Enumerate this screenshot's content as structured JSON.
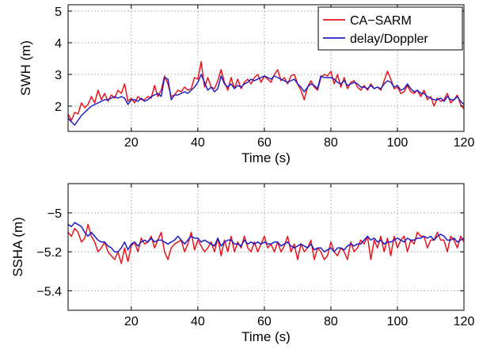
{
  "chart_data": [
    {
      "type": "line",
      "xlabel": "Time (s)",
      "ylabel": "SWH (m)",
      "xlim": [
        1,
        120
      ],
      "ylim": [
        1.2,
        5.2
      ],
      "xticks": [
        20,
        40,
        60,
        80,
        100,
        120
      ],
      "yticks": [
        2,
        3,
        4,
        5
      ],
      "grid": true,
      "legend": "top-right",
      "x": [
        1,
        2,
        3,
        4,
        5,
        6,
        7,
        8,
        9,
        10,
        11,
        12,
        13,
        14,
        15,
        16,
        17,
        18,
        19,
        20,
        21,
        22,
        23,
        24,
        25,
        26,
        27,
        28,
        29,
        30,
        31,
        32,
        33,
        34,
        35,
        36,
        37,
        38,
        39,
        40,
        41,
        42,
        43,
        44,
        45,
        46,
        47,
        48,
        49,
        50,
        51,
        52,
        53,
        54,
        55,
        56,
        57,
        58,
        59,
        60,
        61,
        62,
        63,
        64,
        65,
        66,
        67,
        68,
        69,
        70,
        71,
        72,
        73,
        74,
        75,
        76,
        77,
        78,
        79,
        80,
        81,
        82,
        83,
        84,
        85,
        86,
        87,
        88,
        89,
        90,
        91,
        92,
        93,
        94,
        95,
        96,
        97,
        98,
        99,
        100,
        101,
        102,
        103,
        104,
        105,
        106,
        107,
        108,
        109,
        110,
        111,
        112,
        113,
        114,
        115,
        116,
        117,
        118,
        119,
        120
      ],
      "series": [
        {
          "name": "CA−SARM",
          "color": "#e8141b",
          "values": [
            1.75,
            1.55,
            1.8,
            1.75,
            2.1,
            1.95,
            2.05,
            2.3,
            2.1,
            2.5,
            2.2,
            2.4,
            2.15,
            2.35,
            2.25,
            2.5,
            2.4,
            2.7,
            2.15,
            2.25,
            2.1,
            2.3,
            2.2,
            2.2,
            2.3,
            2.25,
            2.65,
            2.3,
            2.5,
            2.95,
            2.7,
            2.3,
            2.35,
            2.5,
            2.45,
            2.6,
            2.5,
            2.55,
            2.9,
            2.85,
            3.4,
            2.6,
            2.9,
            2.6,
            2.55,
            2.8,
            3.15,
            2.75,
            2.5,
            2.9,
            2.55,
            2.85,
            2.55,
            2.75,
            2.85,
            2.7,
            2.9,
            3.0,
            2.75,
            2.95,
            2.85,
            2.75,
            3.0,
            3.15,
            2.8,
            2.9,
            2.7,
            2.95,
            3.0,
            2.7,
            2.5,
            2.2,
            2.6,
            2.8,
            2.6,
            2.5,
            2.9,
            3.0,
            2.95,
            3.1,
            2.7,
            3.0,
            2.6,
            2.9,
            2.55,
            2.75,
            2.8,
            2.6,
            2.5,
            2.65,
            2.5,
            2.7,
            2.55,
            2.6,
            2.5,
            2.8,
            3.1,
            2.85,
            2.55,
            2.6,
            2.4,
            2.45,
            2.65,
            2.45,
            2.4,
            2.5,
            2.3,
            2.5,
            2.2,
            2.3,
            2.0,
            2.25,
            2.15,
            2.2,
            2.4,
            2.1,
            2.2,
            2.35,
            2.05,
            1.9
          ]
        },
        {
          "name": "delay/Doppler",
          "color": "#1b1bc8",
          "values": [
            1.62,
            1.5,
            1.4,
            1.55,
            1.7,
            1.8,
            1.9,
            2.0,
            2.05,
            2.1,
            2.15,
            2.2,
            2.2,
            2.25,
            2.3,
            2.25,
            2.3,
            2.25,
            2.05,
            2.2,
            2.2,
            2.15,
            2.25,
            2.15,
            2.2,
            2.3,
            2.35,
            2.4,
            2.3,
            2.9,
            2.85,
            2.2,
            2.35,
            2.35,
            2.4,
            2.45,
            2.4,
            2.5,
            2.6,
            2.75,
            3.0,
            2.75,
            2.5,
            2.6,
            2.45,
            2.55,
            2.95,
            2.7,
            2.6,
            2.7,
            2.55,
            2.65,
            2.6,
            2.7,
            2.75,
            2.85,
            2.8,
            2.85,
            2.9,
            2.95,
            2.9,
            2.85,
            2.95,
            2.9,
            2.85,
            2.8,
            2.75,
            2.8,
            2.85,
            2.7,
            2.6,
            2.45,
            2.6,
            2.7,
            2.65,
            2.55,
            2.95,
            2.9,
            2.9,
            2.9,
            2.85,
            2.75,
            2.7,
            2.8,
            2.65,
            2.7,
            2.75,
            2.7,
            2.6,
            2.6,
            2.55,
            2.65,
            2.55,
            2.6,
            2.55,
            2.7,
            2.8,
            2.75,
            2.6,
            2.65,
            2.5,
            2.55,
            2.7,
            2.55,
            2.45,
            2.5,
            2.4,
            2.4,
            2.3,
            2.25,
            2.2,
            2.2,
            2.25,
            2.15,
            2.3,
            2.2,
            2.2,
            2.3,
            2.15,
            2.05
          ]
        }
      ]
    },
    {
      "type": "line",
      "xlabel": "Time (s)",
      "ylabel": "SSHA (m)",
      "xlim": [
        1,
        120
      ],
      "ylim": [
        -5.5,
        -4.85
      ],
      "xticks": [
        20,
        40,
        60,
        80,
        100,
        120
      ],
      "yticks": [
        -5.4,
        -5.2,
        -5
      ],
      "grid": true,
      "legend": "none",
      "x": [
        1,
        2,
        3,
        4,
        5,
        6,
        7,
        8,
        9,
        10,
        11,
        12,
        13,
        14,
        15,
        16,
        17,
        18,
        19,
        20,
        21,
        22,
        23,
        24,
        25,
        26,
        27,
        28,
        29,
        30,
        31,
        32,
        33,
        34,
        35,
        36,
        37,
        38,
        39,
        40,
        41,
        42,
        43,
        44,
        45,
        46,
        47,
        48,
        49,
        50,
        51,
        52,
        53,
        54,
        55,
        56,
        57,
        58,
        59,
        60,
        61,
        62,
        63,
        64,
        65,
        66,
        67,
        68,
        69,
        70,
        71,
        72,
        73,
        74,
        75,
        76,
        77,
        78,
        79,
        80,
        81,
        82,
        83,
        84,
        85,
        86,
        87,
        88,
        89,
        90,
        91,
        92,
        93,
        94,
        95,
        96,
        97,
        98,
        99,
        100,
        101,
        102,
        103,
        104,
        105,
        106,
        107,
        108,
        109,
        110,
        111,
        112,
        113,
        114,
        115,
        116,
        117,
        118,
        119,
        120
      ],
      "series": [
        {
          "name": "CA−SARM",
          "color": "#e8141b",
          "values": [
            -5.1,
            -5.12,
            -5.08,
            -5.1,
            -5.15,
            -5.13,
            -5.06,
            -5.12,
            -5.15,
            -5.2,
            -5.18,
            -5.15,
            -5.2,
            -5.22,
            -5.24,
            -5.2,
            -5.26,
            -5.18,
            -5.25,
            -5.17,
            -5.15,
            -5.2,
            -5.13,
            -5.16,
            -5.15,
            -5.12,
            -5.18,
            -5.14,
            -5.1,
            -5.2,
            -5.24,
            -5.18,
            -5.16,
            -5.15,
            -5.14,
            -5.2,
            -5.16,
            -5.1,
            -5.19,
            -5.14,
            -5.17,
            -5.2,
            -5.18,
            -5.15,
            -5.2,
            -5.13,
            -5.22,
            -5.14,
            -5.2,
            -5.12,
            -5.2,
            -5.15,
            -5.18,
            -5.12,
            -5.18,
            -5.2,
            -5.15,
            -5.2,
            -5.16,
            -5.12,
            -5.18,
            -5.16,
            -5.2,
            -5.15,
            -5.2,
            -5.17,
            -5.12,
            -5.2,
            -5.16,
            -5.24,
            -5.16,
            -5.2,
            -5.18,
            -5.14,
            -5.24,
            -5.18,
            -5.2,
            -5.24,
            -5.22,
            -5.15,
            -5.2,
            -5.22,
            -5.18,
            -5.2,
            -5.24,
            -5.15,
            -5.2,
            -5.18,
            -5.14,
            -5.16,
            -5.12,
            -5.24,
            -5.14,
            -5.18,
            -5.12,
            -5.2,
            -5.13,
            -5.22,
            -5.12,
            -5.18,
            -5.14,
            -5.12,
            -5.2,
            -5.14,
            -5.16,
            -5.1,
            -5.12,
            -5.12,
            -5.18,
            -5.14,
            -5.14,
            -5.1,
            -5.14,
            -5.14,
            -5.2,
            -5.12,
            -5.14,
            -5.18,
            -5.12,
            -5.15
          ]
        },
        {
          "name": "delay/Doppler",
          "color": "#1b1bc8",
          "values": [
            -5.06,
            -5.07,
            -5.05,
            -5.06,
            -5.07,
            -5.1,
            -5.12,
            -5.1,
            -5.12,
            -5.14,
            -5.15,
            -5.15,
            -5.17,
            -5.18,
            -5.2,
            -5.2,
            -5.18,
            -5.15,
            -5.19,
            -5.16,
            -5.15,
            -5.17,
            -5.15,
            -5.14,
            -5.15,
            -5.13,
            -5.15,
            -5.14,
            -5.14,
            -5.15,
            -5.16,
            -5.15,
            -5.14,
            -5.12,
            -5.14,
            -5.16,
            -5.14,
            -5.12,
            -5.13,
            -5.13,
            -5.15,
            -5.14,
            -5.15,
            -5.16,
            -5.17,
            -5.13,
            -5.17,
            -5.15,
            -5.14,
            -5.14,
            -5.16,
            -5.16,
            -5.17,
            -5.14,
            -5.16,
            -5.15,
            -5.16,
            -5.15,
            -5.16,
            -5.15,
            -5.16,
            -5.16,
            -5.15,
            -5.15,
            -5.17,
            -5.16,
            -5.15,
            -5.17,
            -5.18,
            -5.17,
            -5.16,
            -5.17,
            -5.18,
            -5.16,
            -5.19,
            -5.18,
            -5.18,
            -5.2,
            -5.19,
            -5.18,
            -5.2,
            -5.18,
            -5.18,
            -5.19,
            -5.17,
            -5.16,
            -5.17,
            -5.16,
            -5.16,
            -5.14,
            -5.12,
            -5.14,
            -5.13,
            -5.15,
            -5.14,
            -5.16,
            -5.15,
            -5.15,
            -5.14,
            -5.13,
            -5.14,
            -5.15,
            -5.13,
            -5.14,
            -5.14,
            -5.13,
            -5.13,
            -5.12,
            -5.13,
            -5.12,
            -5.14,
            -5.12,
            -5.11,
            -5.12,
            -5.14,
            -5.14,
            -5.13,
            -5.15,
            -5.14,
            -5.13
          ]
        }
      ]
    }
  ]
}
